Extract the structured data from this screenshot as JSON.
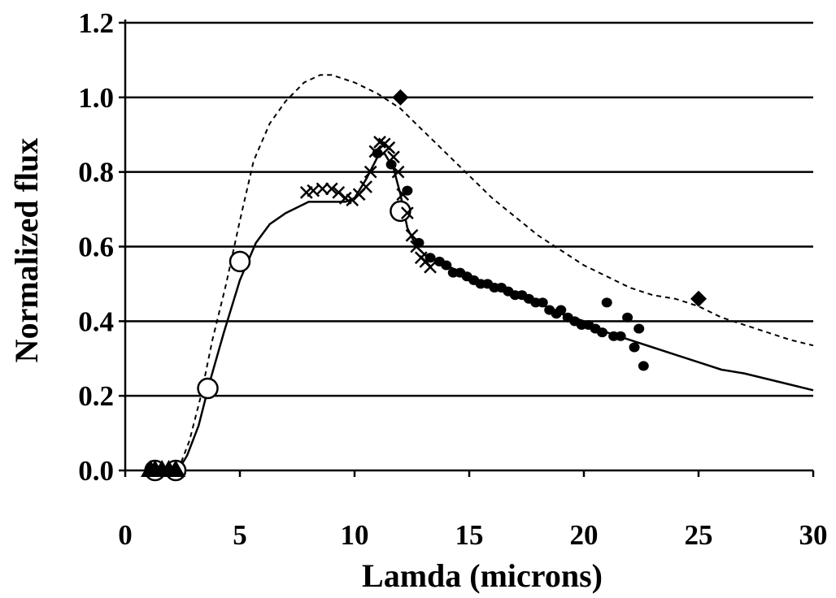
{
  "chart_data": {
    "type": "scatter",
    "title": "",
    "xlabel": "Lamda (microns)",
    "ylabel": "Normalized flux",
    "xlim": [
      0,
      30
    ],
    "ylim": [
      0,
      1.2
    ],
    "x_ticks": [
      "0",
      "5",
      "10",
      "15",
      "20",
      "25",
      "30"
    ],
    "y_ticks": [
      "0.0",
      "0.2",
      "0.4",
      "0.6",
      "0.8",
      "1.0",
      "1.2"
    ],
    "x_tick_values": [
      0,
      5,
      10,
      15,
      20,
      25,
      30
    ],
    "y_tick_values": [
      0,
      0.2,
      0.4,
      0.6,
      0.8,
      1.0,
      1.2
    ],
    "grid": "horizontal",
    "colors": {
      "ink": "#000000",
      "open_marker_fill": "#ffffff",
      "background": "#ffffff"
    },
    "series": [
      {
        "style": "solid-line",
        "x": [
          2.3,
          2.7,
          3.2,
          3.7,
          4.3,
          5.0,
          5.7,
          6.3,
          7.0,
          8.0,
          9.0,
          9.6,
          10.0,
          10.5,
          11.0,
          11.3,
          11.7,
          12.0,
          12.3,
          12.7,
          13.2,
          14.0,
          15.0,
          16.0,
          17.0,
          18.0,
          19.0,
          20.0,
          21.0,
          22.0,
          23.0,
          24.0,
          25.0,
          26.0,
          27.0,
          28.0,
          29.0,
          30.0
        ],
        "y": [
          0.0,
          0.04,
          0.12,
          0.24,
          0.37,
          0.51,
          0.61,
          0.66,
          0.69,
          0.72,
          0.72,
          0.72,
          0.73,
          0.78,
          0.84,
          0.85,
          0.81,
          0.74,
          0.65,
          0.6,
          0.57,
          0.55,
          0.52,
          0.49,
          0.47,
          0.45,
          0.42,
          0.4,
          0.37,
          0.35,
          0.33,
          0.31,
          0.29,
          0.27,
          0.26,
          0.245,
          0.23,
          0.215
        ]
      },
      {
        "style": "dashed-line",
        "x": [
          2.3,
          2.8,
          3.3,
          3.8,
          4.4,
          5.0,
          5.6,
          6.3,
          7.0,
          7.8,
          8.5,
          9.0,
          9.5,
          10.0,
          11.0,
          12.0,
          13.0,
          14.0,
          15.0,
          16.0,
          17.0,
          18.0,
          19.0,
          20.0,
          21.0,
          22.0,
          23.0,
          24.0,
          25.0,
          26.0,
          27.0,
          28.0,
          29.0,
          30.0
        ],
        "y": [
          0.0,
          0.08,
          0.2,
          0.35,
          0.5,
          0.67,
          0.83,
          0.93,
          0.99,
          1.04,
          1.06,
          1.06,
          1.05,
          1.04,
          1.01,
          0.97,
          0.91,
          0.85,
          0.79,
          0.73,
          0.68,
          0.63,
          0.59,
          0.55,
          0.52,
          0.49,
          0.47,
          0.46,
          0.44,
          0.41,
          0.39,
          0.37,
          0.35,
          0.335
        ]
      },
      {
        "marker": "filled-diamond",
        "x": [
          12.0,
          25.0
        ],
        "y": [
          1.0,
          0.46
        ]
      },
      {
        "marker": "open-circle",
        "x": [
          1.3,
          2.2,
          3.6,
          5.0,
          12.0
        ],
        "y": [
          0.0,
          0.0,
          0.22,
          0.56,
          0.695
        ]
      },
      {
        "marker": "filled-triangle",
        "x": [
          1.1,
          1.3,
          1.6,
          1.9,
          2.2
        ],
        "y": [
          0.0,
          0.0,
          0.0,
          0.0,
          0.0
        ]
      },
      {
        "marker": "cross",
        "x": [
          7.9,
          8.2,
          8.6,
          9.0,
          9.3,
          9.6,
          9.9,
          10.2,
          10.5,
          10.7,
          10.9,
          11.1,
          11.3,
          11.5,
          11.7,
          11.9,
          12.1,
          12.3,
          12.5,
          12.7,
          12.9,
          13.1,
          13.3
        ],
        "y": [
          0.745,
          0.75,
          0.755,
          0.755,
          0.745,
          0.73,
          0.725,
          0.74,
          0.76,
          0.8,
          0.855,
          0.88,
          0.875,
          0.865,
          0.84,
          0.8,
          0.74,
          0.69,
          0.63,
          0.6,
          0.57,
          0.56,
          0.545
        ]
      },
      {
        "marker": "filled-circle",
        "x": [
          11.0,
          11.6,
          12.3,
          12.8,
          13.3,
          13.7,
          14.0,
          14.3,
          14.6,
          14.9,
          15.2,
          15.5,
          15.8,
          16.1,
          16.4,
          16.7,
          17.0,
          17.3,
          17.6,
          17.9,
          18.2,
          18.5,
          18.8,
          19.0,
          19.3,
          19.6,
          19.9,
          20.2,
          20.5,
          20.8,
          21.0,
          21.3,
          21.6,
          21.9,
          22.2,
          22.4,
          22.6
        ],
        "y": [
          0.85,
          0.82,
          0.75,
          0.61,
          0.57,
          0.56,
          0.55,
          0.53,
          0.53,
          0.52,
          0.51,
          0.5,
          0.5,
          0.49,
          0.49,
          0.48,
          0.47,
          0.47,
          0.46,
          0.45,
          0.45,
          0.43,
          0.42,
          0.43,
          0.41,
          0.4,
          0.39,
          0.39,
          0.38,
          0.37,
          0.45,
          0.36,
          0.36,
          0.41,
          0.33,
          0.38,
          0.28
        ]
      }
    ]
  }
}
